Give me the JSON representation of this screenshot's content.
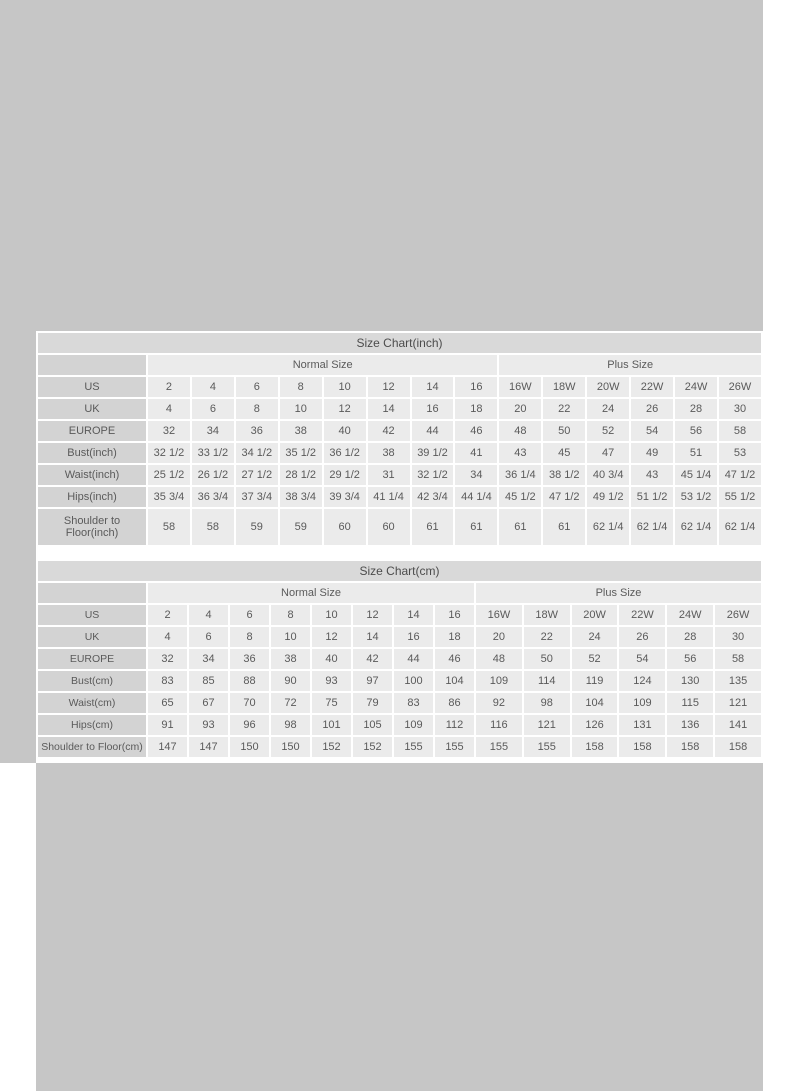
{
  "colors": {
    "backdrop": "#c6c6c6",
    "panel_bg": "#ffffff",
    "title_bar_bg": "#d9d9d9",
    "label_cell_bg": "#d3d3d3",
    "value_cell_bg": "#ebebeb",
    "text": "#5a5a5a",
    "title_text": "#4c4c4c"
  },
  "tables": [
    {
      "title": "Size Chart(inch)",
      "group_headers": [
        "Normal Size",
        "Plus Size"
      ],
      "normal_col_count": 8,
      "plus_col_count": 6,
      "rows": [
        {
          "label": "US",
          "values": [
            "2",
            "4",
            "6",
            "8",
            "10",
            "12",
            "14",
            "16",
            "16W",
            "18W",
            "20W",
            "22W",
            "24W",
            "26W"
          ]
        },
        {
          "label": "UK",
          "values": [
            "4",
            "6",
            "8",
            "10",
            "12",
            "14",
            "16",
            "18",
            "20",
            "22",
            "24",
            "26",
            "28",
            "30"
          ]
        },
        {
          "label": "EUROPE",
          "values": [
            "32",
            "34",
            "36",
            "38",
            "40",
            "42",
            "44",
            "46",
            "48",
            "50",
            "52",
            "54",
            "56",
            "58"
          ]
        },
        {
          "label": "Bust(inch)",
          "values": [
            "32 1/2",
            "33 1/2",
            "34 1/2",
            "35 1/2",
            "36 1/2",
            "38",
            "39 1/2",
            "41",
            "43",
            "45",
            "47",
            "49",
            "51",
            "53"
          ]
        },
        {
          "label": "Waist(inch)",
          "values": [
            "25 1/2",
            "26 1/2",
            "27 1/2",
            "28 1/2",
            "29 1/2",
            "31",
            "32 1/2",
            "34",
            "36 1/4",
            "38 1/2",
            "40 3/4",
            "43",
            "45 1/4",
            "47 1/2"
          ]
        },
        {
          "label": "Hips(inch)",
          "values": [
            "35 3/4",
            "36 3/4",
            "37 3/4",
            "38 3/4",
            "39 3/4",
            "41 1/4",
            "42 3/4",
            "44 1/4",
            "45 1/2",
            "47 1/2",
            "49 1/2",
            "51 1/2",
            "53 1/2",
            "55 1/2"
          ]
        },
        {
          "label": "Shoulder to Floor(inch)",
          "values": [
            "58",
            "58",
            "59",
            "59",
            "60",
            "60",
            "61",
            "61",
            "61",
            "61",
            "62 1/4",
            "62 1/4",
            "62 1/4",
            "62 1/4"
          ]
        }
      ]
    },
    {
      "title": "Size Chart(cm)",
      "group_headers": [
        "Normal Size",
        "Plus Size"
      ],
      "normal_col_count": 8,
      "plus_col_count": 6,
      "rows": [
        {
          "label": "US",
          "values": [
            "2",
            "4",
            "6",
            "8",
            "10",
            "12",
            "14",
            "16",
            "16W",
            "18W",
            "20W",
            "22W",
            "24W",
            "26W"
          ]
        },
        {
          "label": "UK",
          "values": [
            "4",
            "6",
            "8",
            "10",
            "12",
            "14",
            "16",
            "18",
            "20",
            "22",
            "24",
            "26",
            "28",
            "30"
          ]
        },
        {
          "label": "EUROPE",
          "values": [
            "32",
            "34",
            "36",
            "38",
            "40",
            "42",
            "44",
            "46",
            "48",
            "50",
            "52",
            "54",
            "56",
            "58"
          ]
        },
        {
          "label": "Bust(cm)",
          "values": [
            "83",
            "85",
            "88",
            "90",
            "93",
            "97",
            "100",
            "104",
            "109",
            "114",
            "119",
            "124",
            "130",
            "135"
          ]
        },
        {
          "label": "Waist(cm)",
          "values": [
            "65",
            "67",
            "70",
            "72",
            "75",
            "79",
            "83",
            "86",
            "92",
            "98",
            "104",
            "109",
            "115",
            "121"
          ]
        },
        {
          "label": "Hips(cm)",
          "values": [
            "91",
            "93",
            "96",
            "98",
            "101",
            "105",
            "109",
            "112",
            "116",
            "121",
            "126",
            "131",
            "136",
            "141"
          ]
        },
        {
          "label": "Shoulder to Floor(cm)",
          "values": [
            "147",
            "147",
            "150",
            "150",
            "152",
            "152",
            "155",
            "155",
            "155",
            "155",
            "158",
            "158",
            "158",
            "158"
          ]
        }
      ]
    }
  ]
}
